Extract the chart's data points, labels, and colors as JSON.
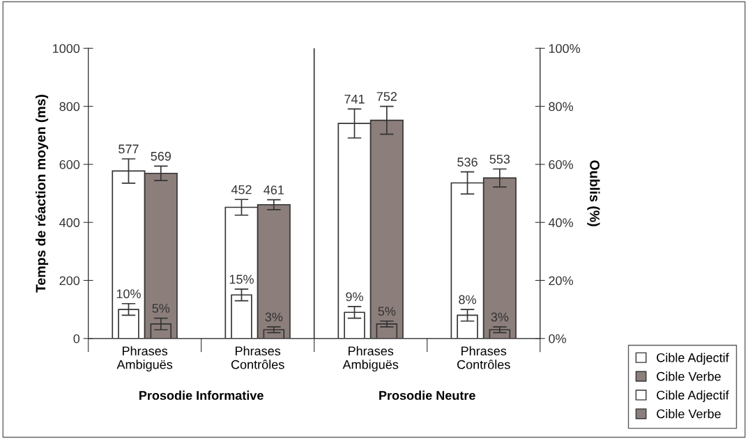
{
  "chart_data": {
    "type": "bar",
    "categories": [
      "Phrases\nAmbiguës",
      "Phrases\nContrôles",
      "Phrases\nAmbiguës",
      "Phrases\nContrôles"
    ],
    "ylabel": "Temps de réaction moyen (ms)",
    "y2label": "Oublis (%)",
    "ylim": [
      0,
      1000
    ],
    "yticks": [
      0,
      200,
      400,
      600,
      800,
      1000
    ],
    "y2lim": [
      0,
      100
    ],
    "y2ticks": [
      {
        "value": 0,
        "label": "0%"
      },
      {
        "value": 20,
        "label": "20%"
      },
      {
        "value": 40,
        "label": "40%"
      },
      {
        "value": 60,
        "label": "60%"
      },
      {
        "value": 80,
        "label": "80%"
      },
      {
        "value": 100,
        "label": "100%"
      }
    ],
    "series": [
      {
        "name": "Cible Adjectif",
        "color": "#ffffff",
        "values": [
          577,
          452,
          741,
          536
        ],
        "errors": [
          42,
          27,
          50,
          38
        ],
        "value_labels": [
          "577",
          "452",
          "741",
          "536"
        ]
      },
      {
        "name": "Cible Verbe",
        "color": "#8c7f7b",
        "values": [
          569,
          461,
          752,
          553
        ],
        "errors": [
          25,
          17,
          48,
          31
        ],
        "value_labels": [
          "569",
          "461",
          "752",
          "553"
        ]
      },
      {
        "name": "Cible Adjectif",
        "color": "#ffffff",
        "axis": "y2",
        "values": [
          10,
          15,
          9,
          8
        ],
        "errors": [
          2,
          2,
          2,
          2
        ],
        "value_labels": [
          "10%",
          "15%",
          "9%",
          "8%"
        ]
      },
      {
        "name": "Cible Verbe",
        "color": "#8c7f7b",
        "axis": "y2",
        "values": [
          5,
          3,
          5,
          3
        ],
        "errors": [
          2,
          1,
          1,
          1
        ],
        "value_labels": [
          "5%",
          "3%",
          "5%",
          "3%"
        ]
      }
    ],
    "annotations": [
      {
        "text": "Prosodie Informative"
      },
      {
        "text": "Prosodie Neutre"
      }
    ],
    "legend": "bottom right",
    "grid": false
  }
}
